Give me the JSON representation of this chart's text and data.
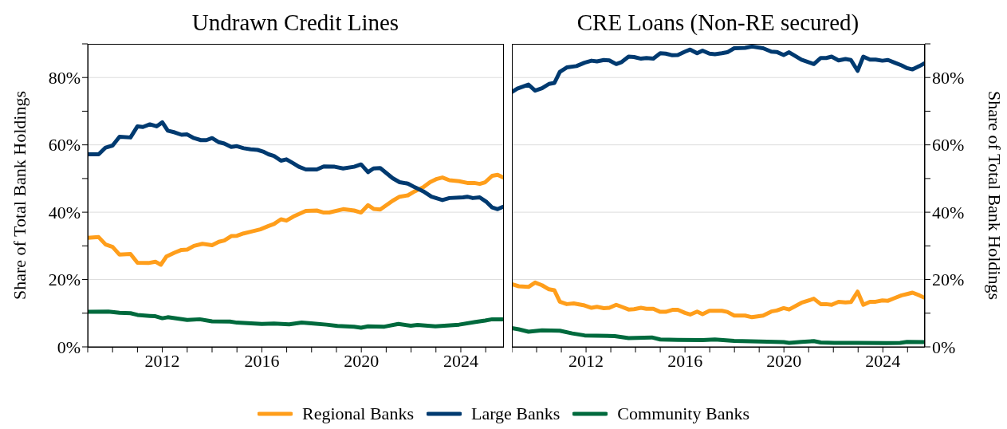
{
  "chart_data": [
    {
      "type": "line",
      "title": "Undrawn Credit Lines",
      "ylabel": "Share of Total Bank Holdings",
      "legend": "bottom",
      "grid": "y",
      "xlim": [
        2009,
        2025.7
      ],
      "xticks": [
        {
          "value": 2009,
          "label": null
        },
        {
          "value": 2010,
          "label": null
        },
        {
          "value": 2011,
          "label": null
        },
        2012,
        {
          "value": 2013,
          "label": null
        },
        {
          "value": 2014,
          "label": null
        },
        {
          "value": 2015,
          "label": null
        },
        2016,
        {
          "value": 2017,
          "label": null
        },
        {
          "value": 2018,
          "label": null
        },
        {
          "value": 2019,
          "label": null
        },
        2020,
        {
          "value": 2021,
          "label": null
        },
        {
          "value": 2022,
          "label": null
        },
        {
          "value": 2023,
          "label": null
        },
        2024,
        {
          "value": 2025,
          "label": null
        }
      ],
      "ylim": [
        0,
        90
      ],
      "yticks": [
        {
          "value": 0,
          "label": "0%"
        },
        {
          "value": 10,
          "label": null
        },
        {
          "value": 20,
          "label": "20%"
        },
        {
          "value": 30,
          "label": null
        },
        {
          "value": 40,
          "label": "40%"
        },
        {
          "value": 50,
          "label": null
        },
        {
          "value": 60,
          "label": "60%"
        },
        {
          "value": 70,
          "label": null
        },
        {
          "value": 80,
          "label": "80%"
        },
        {
          "value": 90,
          "label": null
        }
      ],
      "series": [
        {
          "name": "Regional Banks",
          "color": "#ff9e1b",
          "x": [
            2009.0,
            2009.44,
            2009.72,
            2010.0,
            2010.28,
            2010.72,
            2011.0,
            2011.44,
            2011.72,
            2011.94,
            2012.16,
            2012.5,
            2012.77,
            2013.0,
            2013.27,
            2013.61,
            2014.0,
            2014.27,
            2014.49,
            2014.77,
            2015.0,
            2015.27,
            2015.55,
            2015.94,
            2016.27,
            2016.49,
            2016.77,
            2016.99,
            2017.27,
            2017.77,
            2018.21,
            2018.49,
            2018.71,
            2019.27,
            2019.71,
            2019.99,
            2020.27,
            2020.49,
            2020.76,
            2021.26,
            2021.54,
            2021.87,
            2022.15,
            2022.49,
            2022.76,
            2023.04,
            2023.26,
            2023.54,
            2023.93,
            2024.26,
            2024.54,
            2024.76,
            2024.98,
            2025.26,
            2025.48,
            2025.7
          ],
          "values": [
            32.4,
            32.6,
            30.4,
            29.7,
            27.4,
            27.6,
            25.0,
            24.9,
            25.3,
            24.4,
            26.8,
            28.0,
            28.8,
            28.9,
            30.0,
            30.6,
            30.2,
            31.2,
            31.6,
            32.9,
            33.0,
            33.7,
            34.2,
            34.9,
            35.9,
            36.5,
            37.9,
            37.5,
            38.7,
            40.4,
            40.5,
            39.9,
            39.9,
            40.9,
            40.5,
            39.9,
            42.1,
            41.0,
            40.8,
            43.4,
            44.6,
            45.0,
            46.2,
            47.4,
            48.9,
            49.9,
            50.3,
            49.5,
            49.2,
            48.7,
            48.7,
            48.4,
            48.9,
            50.8,
            51.1,
            50.3
          ]
        },
        {
          "name": "Large Banks",
          "color": "#003a70",
          "x": [
            2009.0,
            2009.44,
            2009.72,
            2010.0,
            2010.28,
            2010.72,
            2011.0,
            2011.22,
            2011.5,
            2011.77,
            2012.0,
            2012.22,
            2012.5,
            2012.77,
            2013.0,
            2013.27,
            2013.55,
            2013.77,
            2014.0,
            2014.27,
            2014.49,
            2014.77,
            2015.0,
            2015.27,
            2015.55,
            2015.83,
            2016.05,
            2016.27,
            2016.49,
            2016.77,
            2016.99,
            2017.27,
            2017.49,
            2017.77,
            2018.21,
            2018.49,
            2018.93,
            2019.27,
            2019.71,
            2019.99,
            2020.27,
            2020.49,
            2020.76,
            2021.26,
            2021.54,
            2021.87,
            2022.15,
            2022.49,
            2022.82,
            2023.26,
            2023.54,
            2024.09,
            2024.26,
            2024.48,
            2024.76,
            2025.04,
            2025.26,
            2025.48,
            2025.7
          ],
          "values": [
            57.2,
            57.2,
            59.2,
            59.8,
            62.4,
            62.2,
            65.5,
            65.3,
            66.1,
            65.5,
            66.7,
            64.2,
            63.7,
            63.0,
            63.1,
            62.0,
            61.4,
            61.4,
            62.0,
            60.8,
            60.4,
            59.4,
            59.6,
            59.0,
            58.7,
            58.5,
            58.0,
            57.2,
            56.7,
            55.3,
            55.7,
            54.5,
            53.5,
            52.7,
            52.7,
            53.6,
            53.5,
            53.0,
            53.5,
            54.2,
            51.9,
            53.0,
            53.1,
            50.1,
            48.9,
            48.5,
            47.4,
            46.2,
            44.6,
            43.6,
            44.2,
            44.4,
            44.6,
            44.2,
            44.4,
            43.0,
            41.4,
            40.9,
            41.6
          ]
        },
        {
          "name": "Community Banks",
          "color": "#006a3d",
          "x": [
            2009.0,
            2009.83,
            2010.28,
            2010.72,
            2011.0,
            2011.5,
            2011.72,
            2012.0,
            2012.22,
            2013.0,
            2013.5,
            2014.0,
            2014.72,
            2015.0,
            2016.0,
            2016.49,
            2017.1,
            2017.6,
            2017.99,
            2018.6,
            2019.04,
            2019.71,
            2019.99,
            2020.27,
            2020.93,
            2021.49,
            2021.99,
            2022.26,
            2022.98,
            2023.93,
            2024.59,
            2024.98,
            2025.26,
            2025.7
          ],
          "values": [
            10.4,
            10.5,
            10.1,
            10.0,
            9.5,
            9.2,
            9.1,
            8.5,
            8.8,
            8.0,
            8.2,
            7.6,
            7.5,
            7.2,
            6.8,
            6.9,
            6.7,
            7.2,
            7.0,
            6.6,
            6.2,
            6.0,
            5.7,
            6.1,
            6.0,
            6.8,
            6.3,
            6.5,
            6.1,
            6.6,
            7.4,
            7.8,
            8.2,
            8.2
          ]
        }
      ]
    },
    {
      "type": "line",
      "title": "CRE Loans (Non-RE secured)",
      "y2label": "Share of Total Bank Holdings",
      "grid": "y",
      "xlim": [
        2009,
        2025.7
      ],
      "xticks": [
        {
          "value": 2009,
          "label": null
        },
        {
          "value": 2010,
          "label": null
        },
        {
          "value": 2011,
          "label": null
        },
        2012,
        {
          "value": 2013,
          "label": null
        },
        {
          "value": 2014,
          "label": null
        },
        {
          "value": 2015,
          "label": null
        },
        2016,
        {
          "value": 2017,
          "label": null
        },
        {
          "value": 2018,
          "label": null
        },
        {
          "value": 2019,
          "label": null
        },
        2020,
        {
          "value": 2021,
          "label": null
        },
        {
          "value": 2022,
          "label": null
        },
        {
          "value": 2023,
          "label": null
        },
        2024,
        {
          "value": 2025,
          "label": null
        }
      ],
      "y2lim": [
        0,
        90
      ],
      "y2ticks": [
        {
          "value": 0,
          "label": "0%"
        },
        {
          "value": 10,
          "label": null
        },
        {
          "value": 20,
          "label": "20%"
        },
        {
          "value": 30,
          "label": null
        },
        {
          "value": 40,
          "label": "40%"
        },
        {
          "value": 50,
          "label": null
        },
        {
          "value": 60,
          "label": "60%"
        },
        {
          "value": 70,
          "label": null
        },
        {
          "value": 80,
          "label": "80%"
        },
        {
          "value": 90,
          "label": null
        }
      ],
      "series": [
        {
          "color": "#ff9e1b",
          "axis": "y2",
          "x": [
            2009.0,
            2009.28,
            2009.67,
            2009.94,
            2010.22,
            2010.5,
            2010.72,
            2010.94,
            2011.22,
            2011.5,
            2011.94,
            2012.22,
            2012.44,
            2012.72,
            2012.94,
            2013.22,
            2013.44,
            2013.72,
            2013.94,
            2014.22,
            2014.44,
            2014.72,
            2015.0,
            2015.22,
            2015.49,
            2015.71,
            2016.0,
            2016.21,
            2016.49,
            2016.71,
            2016.99,
            2017.49,
            2017.71,
            2017.99,
            2018.43,
            2018.71,
            2019.16,
            2019.49,
            2019.71,
            2019.99,
            2020.21,
            2020.71,
            2021.21,
            2021.49,
            2021.71,
            2021.93,
            2022.21,
            2022.49,
            2022.71,
            2022.98,
            2023.21,
            2023.48,
            2023.71,
            2023.98,
            2024.21,
            2024.48,
            2024.76,
            2024.98,
            2025.2,
            2025.48,
            2025.68
          ],
          "values": [
            18.6,
            18.0,
            17.8,
            19.1,
            18.3,
            17.1,
            16.8,
            13.4,
            12.7,
            12.9,
            12.3,
            11.6,
            11.9,
            11.5,
            11.6,
            12.5,
            11.9,
            11.1,
            11.2,
            11.6,
            11.3,
            11.3,
            10.4,
            10.4,
            11.0,
            11.0,
            10.1,
            9.6,
            10.5,
            9.7,
            10.7,
            10.7,
            10.4,
            9.3,
            9.3,
            8.8,
            9.3,
            10.5,
            10.8,
            11.5,
            11.1,
            13.1,
            14.3,
            12.7,
            12.7,
            12.5,
            13.4,
            13.2,
            13.3,
            16.4,
            12.5,
            13.4,
            13.4,
            13.8,
            13.7,
            14.5,
            15.3,
            15.7,
            16.1,
            15.3,
            14.6
          ]
        },
        {
          "color": "#003a70",
          "axis": "y2",
          "x": [
            2009.0,
            2009.22,
            2009.67,
            2009.94,
            2010.22,
            2010.5,
            2010.72,
            2010.94,
            2011.22,
            2011.61,
            2011.94,
            2012.22,
            2012.44,
            2012.72,
            2012.94,
            2013.22,
            2013.44,
            2013.72,
            2013.94,
            2014.22,
            2014.44,
            2014.72,
            2015.0,
            2015.22,
            2015.49,
            2015.71,
            2016.0,
            2016.21,
            2016.49,
            2016.71,
            2016.99,
            2017.21,
            2017.49,
            2017.71,
            2017.99,
            2018.43,
            2018.71,
            2019.16,
            2019.49,
            2019.71,
            2019.99,
            2020.21,
            2020.71,
            2021.21,
            2021.49,
            2021.71,
            2021.93,
            2022.21,
            2022.49,
            2022.71,
            2022.98,
            2023.21,
            2023.48,
            2023.71,
            2023.98,
            2024.21,
            2024.48,
            2024.76,
            2024.98,
            2025.2,
            2025.48,
            2025.68
          ],
          "values": [
            75.7,
            76.7,
            77.9,
            76.1,
            76.8,
            78.1,
            78.4,
            81.7,
            83.0,
            83.4,
            84.4,
            85.0,
            84.8,
            85.2,
            85.1,
            84.0,
            84.6,
            86.2,
            86.1,
            85.6,
            85.8,
            85.6,
            87.2,
            87.1,
            86.6,
            86.7,
            87.7,
            88.3,
            87.2,
            88.0,
            87.1,
            86.9,
            87.2,
            87.5,
            88.7,
            88.8,
            89.2,
            88.7,
            87.7,
            87.6,
            86.7,
            87.5,
            85.3,
            84.0,
            85.8,
            85.8,
            86.2,
            85.1,
            85.5,
            85.2,
            82.0,
            86.2,
            85.3,
            85.3,
            85.0,
            85.2,
            84.4,
            83.6,
            82.8,
            82.4,
            83.4,
            84.2
          ]
        },
        {
          "color": "#006a3d",
          "axis": "y2",
          "x": [
            2009.0,
            2009.28,
            2009.67,
            2010.22,
            2010.94,
            2011.44,
            2011.94,
            2012.44,
            2013.16,
            2013.72,
            2014.66,
            2015.0,
            2015.71,
            2016.71,
            2017.21,
            2017.99,
            2018.99,
            2019.99,
            2020.21,
            2020.71,
            2021.21,
            2021.49,
            2022.04,
            2022.98,
            2024.15,
            2024.7,
            2024.98,
            2025.68
          ],
          "values": [
            5.6,
            5.2,
            4.5,
            4.9,
            4.8,
            4.0,
            3.4,
            3.3,
            3.2,
            2.6,
            2.8,
            2.2,
            2.1,
            2.0,
            2.2,
            1.8,
            1.6,
            1.4,
            1.2,
            1.5,
            1.7,
            1.3,
            1.2,
            1.2,
            1.1,
            1.2,
            1.5,
            1.4
          ]
        }
      ]
    }
  ]
}
